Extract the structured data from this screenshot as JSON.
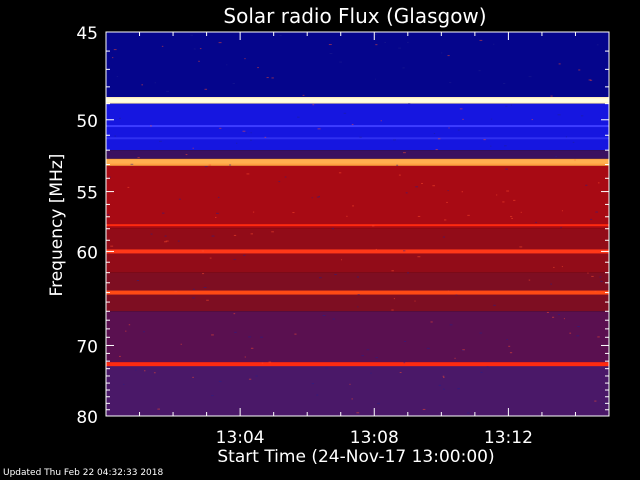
{
  "chart_data": {
    "type": "heatmap",
    "title": "Solar radio Flux (Glasgow)",
    "xlabel": "Start Time (24-Nov-17 13:00:00)",
    "ylabel": "Frequency [MHz]",
    "x_start_minutes": 0,
    "x_end_minutes": 15,
    "x_ticks": [
      {
        "minute": 4,
        "label": "13:04"
      },
      {
        "minute": 8,
        "label": "13:08"
      },
      {
        "minute": 12,
        "label": "13:12"
      }
    ],
    "y_range_mhz": [
      45,
      80
    ],
    "y_ticks": [
      45,
      50,
      55,
      60,
      70,
      80
    ],
    "y_axis_scale": "reciprocal",
    "background_bands": [
      {
        "from_mhz": 45,
        "to_mhz": 48.6,
        "color": "#05058c"
      },
      {
        "from_mhz": 48.6,
        "to_mhz": 49.0,
        "color": "#fff0c0"
      },
      {
        "from_mhz": 49.0,
        "to_mhz": 52.0,
        "color": "#1616e0"
      },
      {
        "from_mhz": 52.0,
        "to_mhz": 52.6,
        "color": "#3a1060"
      },
      {
        "from_mhz": 52.6,
        "to_mhz": 53.1,
        "color": "#ffa040"
      },
      {
        "from_mhz": 53.1,
        "to_mhz": 58.0,
        "color": "#a80a14"
      },
      {
        "from_mhz": 58.0,
        "to_mhz": 62.0,
        "color": "#920c18"
      },
      {
        "from_mhz": 62.0,
        "to_mhz": 66.0,
        "color": "#7e0e22"
      },
      {
        "from_mhz": 66.0,
        "to_mhz": 72.5,
        "color": "#5a1050"
      },
      {
        "from_mhz": 72.5,
        "to_mhz": 80.0,
        "color": "#4a1868"
      }
    ],
    "emission_lines": [
      {
        "freq_mhz": 48.8,
        "intensity": "very high",
        "color": "#fffde0"
      },
      {
        "freq_mhz": 50.4,
        "intensity": "medium",
        "color": "#3c3cff"
      },
      {
        "freq_mhz": 51.2,
        "intensity": "medium",
        "color": "#3030f0"
      },
      {
        "freq_mhz": 52.8,
        "intensity": "high",
        "color": "#ffb050"
      },
      {
        "freq_mhz": 57.7,
        "intensity": "medium",
        "color": "#ff2a10"
      },
      {
        "freq_mhz": 60.0,
        "intensity": "high",
        "color": "#ff3818"
      },
      {
        "freq_mhz": 64.0,
        "intensity": "high",
        "color": "#ff4a14"
      },
      {
        "freq_mhz": 72.4,
        "intensity": "high",
        "color": "#ff2a10"
      }
    ],
    "colormap": [
      "#000064",
      "#1414dc",
      "#5a1a6e",
      "#b41414",
      "#ff2814",
      "#ffa03c",
      "#ffffdc"
    ]
  },
  "footer": "Updated Thu Feb 22 04:32:33 2018"
}
